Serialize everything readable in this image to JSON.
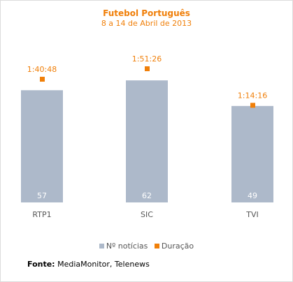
{
  "chart_data": {
    "type": "bar",
    "title": "Futebol Português",
    "subtitle": "8 a 14 de Abril de 2013",
    "categories": [
      "RTP1",
      "SIC",
      "TVI"
    ],
    "series": [
      {
        "name": "Nº notícias",
        "values": [
          57,
          62,
          49
        ],
        "color": "#adb9ca"
      },
      {
        "name": "Duração",
        "values": [
          "1:40:48",
          "1:51:26",
          "1:14:16"
        ],
        "color": "#f07f09"
      }
    ],
    "legend_position": "bottom",
    "grid": false
  },
  "source": {
    "label": "Fonte:",
    "text": "MediaMonitor, Telenews"
  }
}
